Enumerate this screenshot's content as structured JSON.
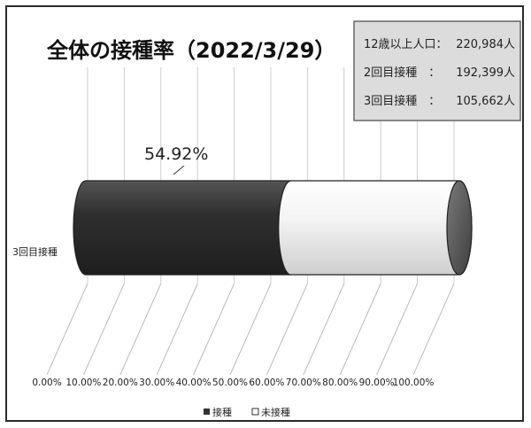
{
  "chart_data": {
    "type": "bar",
    "orientation": "horizontal",
    "style": "3d-cylinder",
    "stacked": "100%",
    "title": "全体の接種率（2022/3/29）",
    "categories": [
      "3回目接種"
    ],
    "series": [
      {
        "name": "接種",
        "values": [
          54.92
        ],
        "color": "#3a3a3a"
      },
      {
        "name": "未接種",
        "values": [
          45.08
        ],
        "color": "#f2f2f2"
      }
    ],
    "data_labels": [
      "54.92%"
    ],
    "x_ticks": [
      "0.00%",
      "10.00%",
      "20.00%",
      "30.00%",
      "40.00%",
      "50.00%",
      "60.00%",
      "70.00%",
      "80.00%",
      "90.00%",
      "100.00%"
    ],
    "xlim": [
      0,
      100
    ],
    "grid": true,
    "legend_position": "bottom",
    "info_box": [
      {
        "label": "12歳以上人口：",
        "value": "220,984人"
      },
      {
        "label": "2回目接種　：",
        "value": "192,399人"
      },
      {
        "label": "3回目接種　：",
        "value": "105,662人"
      }
    ]
  }
}
